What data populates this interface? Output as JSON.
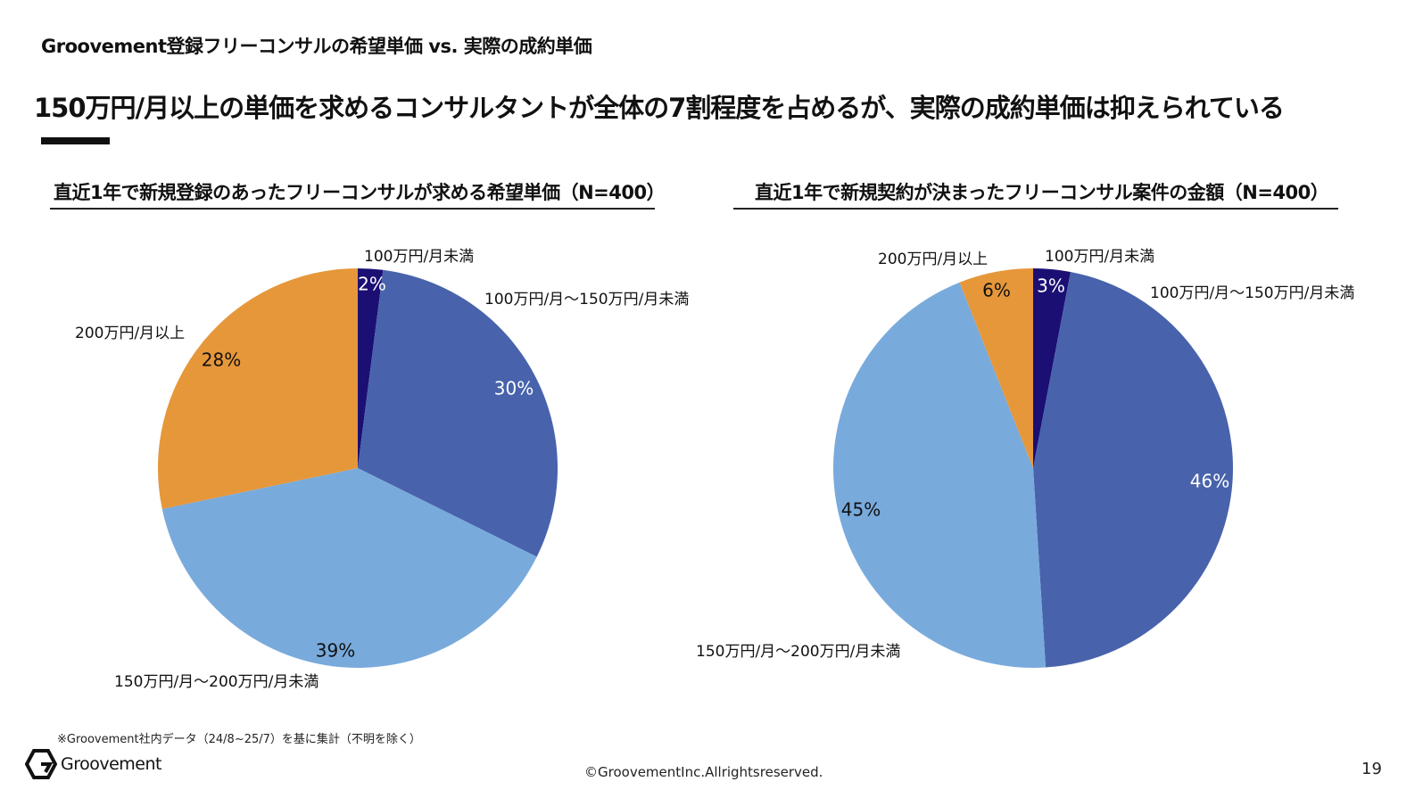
{
  "header": {
    "doc_title": "Groovement登録フリーコンサルの希望単価 vs. 実際の成約単価",
    "headline": "150万円/月以上の単価を求めるコンサルタントが全体の7割程度を占めるが、実際の成約単価は抑えられている"
  },
  "footer": {
    "footnote": "※Groovement社内データ（24/8~25/7）を基に集計（不明を除く）",
    "logo_text": "Groovement",
    "copyright": "©GroovementInc.Allrightsreserved.",
    "page_number": "19"
  },
  "colors": {
    "under_100": "#1b0f74",
    "from_100_to_150": "#4863ab",
    "from_150_to_200": "#79aadc",
    "over_200": "#e6973a"
  },
  "chart_data": [
    {
      "type": "pie",
      "title": "直近1年で新規登録のあったフリーコンサルが求める希望単価（N=400）",
      "categories": [
        "100万円/月未満",
        "100万円/月～150万円/月未満",
        "150万円/月～200万円/月未満",
        "200万円/月以上"
      ],
      "values": [
        2,
        30,
        39,
        28
      ],
      "value_labels": [
        "2%",
        "30%",
        "39%",
        "28%"
      ],
      "unit": "%"
    },
    {
      "type": "pie",
      "title": "直近1年で新規契約が決まったフリーコンサル案件の金額（N=400）",
      "categories": [
        "100万円/月未満",
        "100万円/月～150万円/月未満",
        "150万円/月～200万円/月未満",
        "200万円/月以上"
      ],
      "values": [
        3,
        46,
        45,
        6
      ],
      "value_labels": [
        "3%",
        "46%",
        "45%",
        "6%"
      ],
      "unit": "%"
    }
  ]
}
